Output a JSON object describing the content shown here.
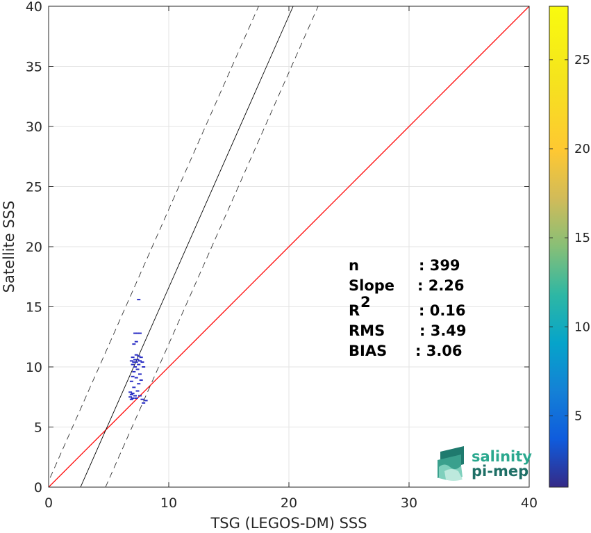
{
  "chart_data": {
    "type": "scatter",
    "xlabel": "TSG (LEGOS-DM) SSS",
    "ylabel": "Satellite SSS",
    "xlim": [
      0,
      40
    ],
    "ylim": [
      0,
      40
    ],
    "xticks": [
      0,
      10,
      20,
      30,
      40
    ],
    "yticks": [
      0,
      5,
      10,
      15,
      20,
      25,
      30,
      35,
      40
    ],
    "grid": true,
    "colorbar": {
      "range": [
        1,
        28
      ],
      "ticks": [
        5,
        10,
        15,
        20,
        25
      ]
    },
    "stats": [
      {
        "label": "n",
        "value": ": 399"
      },
      {
        "label": "Slope",
        "value": ": 2.26"
      },
      {
        "label": "R",
        "sup": "2",
        "value": ": 0.16"
      },
      {
        "label": "RMS",
        "value": ": 3.49"
      },
      {
        "label": "BIAS",
        "value": ": 3.06"
      }
    ],
    "reference_line": {
      "kind": "1:1",
      "color": "#ff0000"
    },
    "fit_line": {
      "slope": 2.26,
      "intercept": -6.0,
      "color": "#000000"
    },
    "fit_bounds": [
      {
        "slope": 2.26,
        "intercept": 0.5,
        "style": "dashed"
      },
      {
        "slope": 2.26,
        "intercept": -10.7,
        "style": "dashed"
      }
    ],
    "points": [
      [
        7.5,
        15.6
      ],
      [
        7.2,
        12.8
      ],
      [
        7.4,
        12.8
      ],
      [
        7.6,
        12.8
      ],
      [
        7.3,
        12.1
      ],
      [
        7.1,
        11.9
      ],
      [
        7.3,
        11.0
      ],
      [
        7.5,
        10.9
      ],
      [
        7.0,
        10.8
      ],
      [
        7.7,
        10.8
      ],
      [
        7.2,
        10.6
      ],
      [
        7.4,
        10.6
      ],
      [
        6.9,
        10.5
      ],
      [
        7.6,
        10.5
      ],
      [
        7.1,
        10.4
      ],
      [
        7.3,
        10.4
      ],
      [
        7.8,
        10.4
      ],
      [
        7.0,
        10.2
      ],
      [
        7.5,
        10.2
      ],
      [
        7.2,
        10.0
      ],
      [
        7.9,
        10.0
      ],
      [
        7.4,
        9.8
      ],
      [
        7.1,
        9.6
      ],
      [
        7.6,
        9.4
      ],
      [
        7.0,
        9.2
      ],
      [
        7.3,
        9.1
      ],
      [
        7.7,
        8.9
      ],
      [
        6.9,
        8.8
      ],
      [
        7.5,
        8.6
      ],
      [
        7.1,
        8.3
      ],
      [
        7.4,
        8.0
      ],
      [
        6.8,
        7.9
      ],
      [
        7.0,
        7.8
      ],
      [
        6.9,
        7.7
      ],
      [
        7.2,
        7.6
      ],
      [
        7.6,
        7.6
      ],
      [
        6.8,
        7.5
      ],
      [
        7.0,
        7.4
      ],
      [
        7.3,
        7.4
      ],
      [
        6.9,
        7.3
      ],
      [
        7.8,
        7.3
      ],
      [
        8.1,
        7.2
      ],
      [
        7.9,
        7.0
      ]
    ],
    "point_color": "#2a2ec4"
  },
  "logo": {
    "line1": "salinity",
    "line2": "pi-mep"
  }
}
